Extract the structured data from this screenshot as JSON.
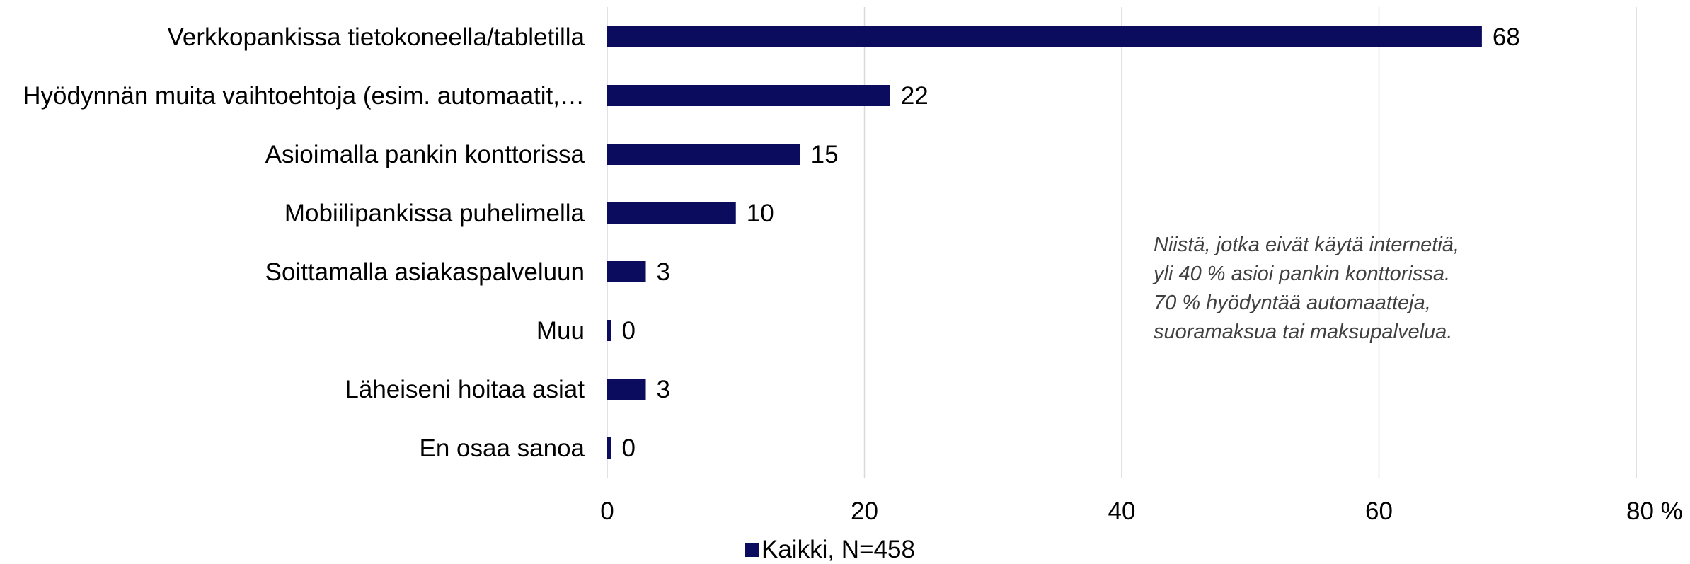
{
  "colors": {
    "bar": "#0c0c5e",
    "grid": "#d9d9d9",
    "text": "#000000",
    "annotation": "#404040"
  },
  "chart_data": {
    "type": "bar",
    "orientation": "horizontal",
    "categories": [
      "Verkkopankissa tietokoneella/tabletilla",
      "Hyödynnän muita vaihtoehtoja (esim. automaatit,…",
      "Asioimalla pankin konttorissa",
      "Mobiilipankissa puhelimella",
      "Soittamalla asiakaspalveluun",
      "Muu",
      "Läheiseni hoitaa asiat",
      "En osaa sanoa"
    ],
    "series": [
      {
        "name": "Kaikki, N=458",
        "values": [
          68,
          22,
          15,
          10,
          3,
          0.3,
          3,
          0.3
        ],
        "data_labels": [
          "68",
          "22",
          "15",
          "10",
          "3",
          "0",
          "3",
          "0"
        ]
      }
    ],
    "xlim": [
      0,
      80
    ],
    "xticks": [
      {
        "value": 0,
        "label": "0"
      },
      {
        "value": 20,
        "label": "20"
      },
      {
        "value": 40,
        "label": "40"
      },
      {
        "value": 60,
        "label": "60"
      },
      {
        "value": 80,
        "label": "80 %"
      }
    ],
    "grid": true,
    "legend_position": "bottom"
  },
  "annotation": {
    "lines": [
      "Niistä, jotka eivät käytä internetiä,",
      "yli 40 % asioi pankin konttorissa.",
      "70 % hyödyntää automaatteja,",
      "suoramaksua tai maksupalvelua."
    ]
  },
  "legend": {
    "label": "Kaikki, N=458"
  }
}
